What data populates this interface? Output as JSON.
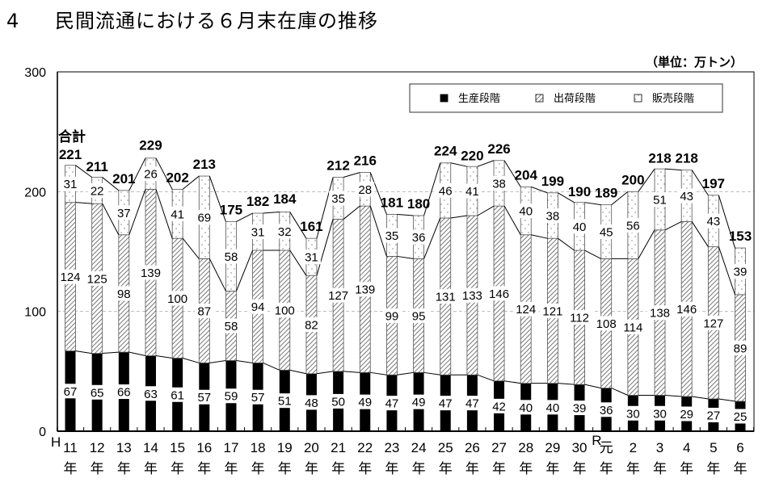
{
  "header": {
    "section_number": "4",
    "title": "民間流通における６月末在庫の推移",
    "unit": "（単位：万トン）"
  },
  "chart_data": {
    "type": "bar",
    "stacked": true,
    "title": "民間流通における６月末在庫の推移",
    "ylabel": "",
    "xlabel": "",
    "unit": "万トン",
    "ylim": [
      0,
      300
    ],
    "yticks": [
      0,
      100,
      200,
      300
    ],
    "grid": true,
    "legend_position": "top-right",
    "total_label_heading": "合計",
    "era_prefix_heisei": "H",
    "era_prefix_reiwa": "R",
    "year_suffix": "年",
    "categories": [
      "11",
      "12",
      "13",
      "14",
      "15",
      "16",
      "17",
      "18",
      "19",
      "20",
      "21",
      "22",
      "23",
      "24",
      "25",
      "26",
      "27",
      "28",
      "29",
      "30",
      "元",
      "2",
      "3",
      "4",
      "5",
      "6"
    ],
    "series": [
      {
        "name": "生産段階",
        "pattern": "solid",
        "color": "#000000",
        "values": [
          67,
          65,
          66,
          63,
          61,
          57,
          59,
          57,
          51,
          48,
          50,
          49,
          47,
          49,
          47,
          47,
          42,
          40,
          40,
          39,
          36,
          30,
          30,
          29,
          27,
          25
        ]
      },
      {
        "name": "出荷段階",
        "pattern": "hatch",
        "color": "#444444",
        "values": [
          124,
          125,
          98,
          139,
          100,
          87,
          58,
          94,
          100,
          82,
          127,
          139,
          99,
          95,
          131,
          133,
          146,
          124,
          121,
          112,
          108,
          114,
          138,
          146,
          127,
          89
        ]
      },
      {
        "name": "販売段階",
        "pattern": "dots",
        "color": "#888888",
        "values": [
          31,
          22,
          37,
          26,
          41,
          69,
          58,
          31,
          32,
          31,
          35,
          28,
          35,
          36,
          46,
          41,
          38,
          40,
          38,
          40,
          45,
          56,
          51,
          43,
          43,
          39
        ]
      }
    ],
    "totals": [
      221,
      211,
      201,
      229,
      202,
      213,
      175,
      182,
      184,
      161,
      212,
      216,
      181,
      180,
      224,
      220,
      226,
      204,
      199,
      190,
      189,
      200,
      218,
      218,
      197,
      153
    ]
  }
}
